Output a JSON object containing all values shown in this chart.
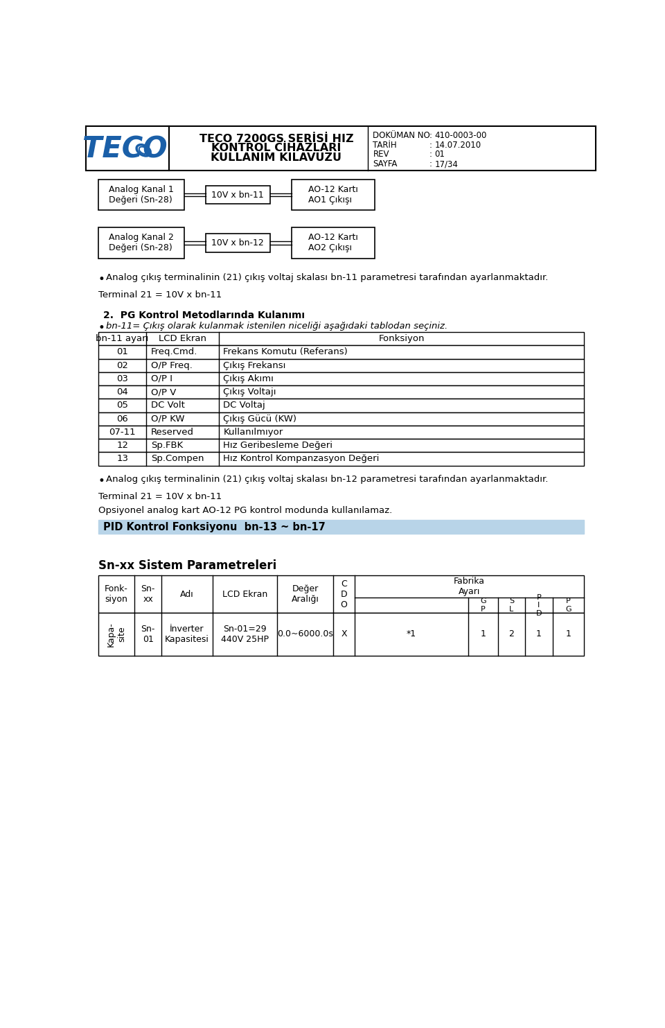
{
  "header": {
    "title_line1": "TECO 7200GS SERİSİ HIZ",
    "title_line2": "KONTROL CİHAZLARI",
    "title_line3": "KULLANIM KILAVUZU",
    "doc_labels": [
      "DOKÜMAN NO",
      "TARİH",
      "REV",
      "SAYFA"
    ],
    "doc_values": [
      "410-0003-00",
      "14.07.2010",
      "01",
      "17/34"
    ]
  },
  "diagram_row1": {
    "box1": "Analog Kanal 1\nDeğeri (Sn-28)",
    "box2": "10V x bn-11",
    "box3": "AO-12 Kartı\nAO1 Çıkışı"
  },
  "diagram_row2": {
    "box1": "Analog Kanal 2\nDeğeri (Sn-28)",
    "box2": "10V x bn-12",
    "box3": "AO-12 Kartı\nAO2 Çıkışı"
  },
  "bullet1": "Analog çıkış terminalinin (21) çıkış voltaj skalası bn-11 parametresi tarafından ayarlanmaktadır.",
  "terminal_line": "Terminal 21 = 10V x bn-11",
  "section2_title": "2.  PG Kontrol Metodlarında Kulanımı",
  "section2_bullet": "bn-11= Çıkış olarak kulanmak istenilen niceliği aşağıdaki tablodan seçiniz.",
  "table_headers": [
    "bn-11 ayarı",
    "LCD Ekran",
    "Fonksiyon"
  ],
  "table_rows": [
    [
      "01",
      "Freq.Cmd.",
      "Frekans Komutu (Referans)"
    ],
    [
      "02",
      "O/P Freq.",
      "Çıkış Frekansı"
    ],
    [
      "03",
      "O/P I",
      "Çıkış Akımı"
    ],
    [
      "04",
      "O/P V",
      "Çıkış Voltajı"
    ],
    [
      "05",
      "DC Volt",
      "DC Voltaj"
    ],
    [
      "06",
      "O/P KW",
      "Çıkış Gücü (KW)"
    ],
    [
      "07-11",
      "Reserved",
      "Kullanılmıyor"
    ],
    [
      "12",
      "Sp.FBK",
      "Hız Geribesleme Değeri"
    ],
    [
      "13",
      "Sp.Compen",
      "Hız Kontrol Kompanzasyon Değeri"
    ]
  ],
  "bullet2": "Analog çıkış terminalinin (21) çıkış voltaj skalası bn-12 parametresi tarafından ayarlanmaktadır.",
  "terminal_line2": "Terminal 21 = 10V x bn-11",
  "optional_line": "Opsiyonel analog kart AO-12 PG kontrol modunda kullanılamaz.",
  "pid_banner": "PID Kontrol Fonksiyonu  bn-13 ~ bn-17",
  "sn_section_title": "Sn-xx Sistem Parametreleri",
  "bg_color": "#ffffff",
  "logo_color": "#1a5fa8",
  "pid_banner_bg": "#b8d4e8"
}
